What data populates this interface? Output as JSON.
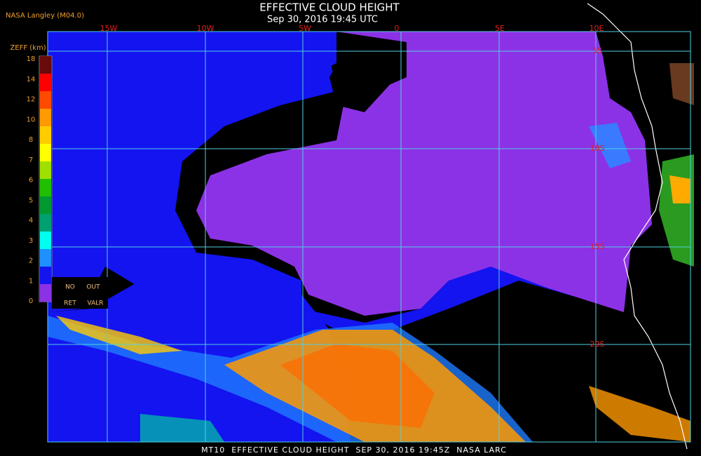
{
  "header": {
    "title": "EFFECTIVE CLOUD HEIGHT",
    "subtitle": "Sep 30, 2016 19:45 UTC",
    "credit": "NASA Langley (M04.0)"
  },
  "legend": {
    "title": "ZEFF (km)",
    "ticks": [
      "18",
      "14",
      "12",
      "10",
      "8",
      "7",
      "6",
      "5",
      "4",
      "3",
      "2",
      "1",
      "0"
    ],
    "no_ret": [
      "NO",
      "RET"
    ],
    "out_valr": [
      "OUT",
      "VALR"
    ]
  },
  "longitudes": [
    "15W",
    "10W",
    "5W",
    "0",
    "5E",
    "10E"
  ],
  "latitudes": [
    "5S",
    "10S",
    "15S",
    "20S"
  ],
  "footer": "MT10  EFFECTIVE CLOUD HEIGHT  SEP 30, 2016 19:45Z  NASA LARC"
}
